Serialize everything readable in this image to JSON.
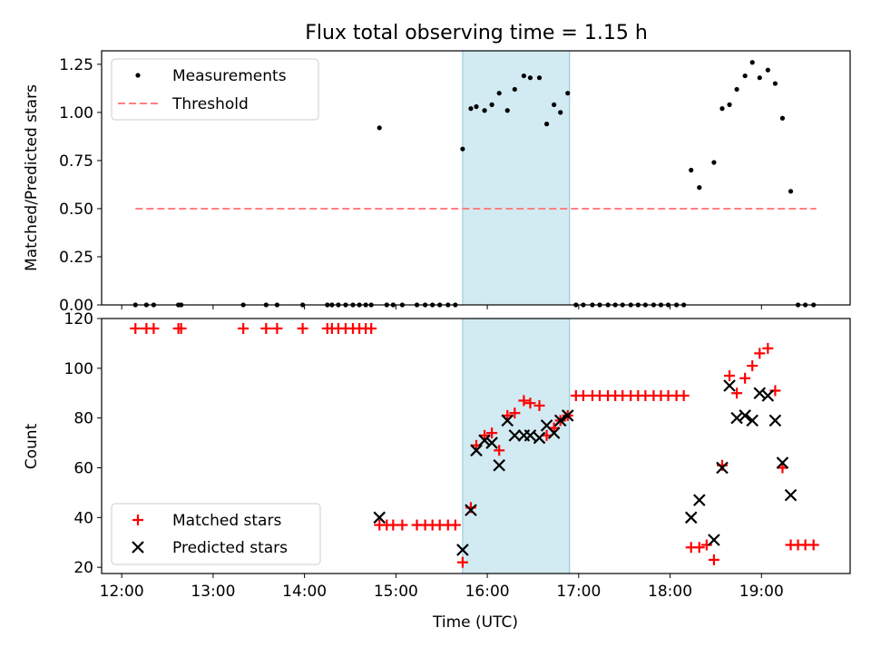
{
  "title": "Flux total observing time = 1.15 h",
  "colors": {
    "highlight": "#add8e6",
    "matched": "#ff0000",
    "predicted": "#000000",
    "threshold": "#ff8080"
  },
  "chart_data": [
    {
      "type": "scatter",
      "ylabel": "Matched/Predicted stars",
      "xlim": [
        11.78,
        19.97
      ],
      "ylim": [
        0,
        1.32
      ],
      "yticks": [
        "0.00",
        "0.25",
        "0.50",
        "0.75",
        "1.00",
        "1.25"
      ],
      "yticks_values": [
        0,
        0.25,
        0.5,
        0.75,
        1.0,
        1.25
      ],
      "highlight_span": [
        15.73,
        16.9
      ],
      "legend_position": "upper-left",
      "series": [
        {
          "name": "Measurements",
          "x": [
            12.15,
            12.27,
            12.35,
            12.62,
            12.65,
            13.33,
            13.58,
            13.7,
            13.98,
            14.25,
            14.3,
            14.37,
            14.45,
            14.53,
            14.6,
            14.67,
            14.73,
            14.82,
            14.9,
            14.97,
            15.07,
            15.23,
            15.32,
            15.4,
            15.48,
            15.57,
            15.65,
            15.73,
            15.82,
            15.88,
            15.97,
            16.05,
            16.13,
            16.22,
            16.3,
            16.4,
            16.47,
            16.57,
            16.65,
            16.73,
            16.8,
            16.88,
            16.97,
            17.05,
            17.15,
            17.23,
            17.32,
            17.4,
            17.48,
            17.57,
            17.65,
            17.73,
            17.82,
            17.9,
            17.98,
            18.07,
            18.15,
            18.23,
            18.32,
            18.48,
            18.57,
            18.65,
            18.73,
            18.82,
            18.9,
            18.98,
            19.07,
            19.15,
            19.23,
            19.32,
            19.4,
            19.48,
            19.57
          ],
          "y": [
            0,
            0,
            0,
            0,
            0,
            0,
            0,
            0,
            0,
            0,
            0,
            0,
            0,
            0,
            0,
            0,
            0,
            0.92,
            0,
            0,
            0,
            0,
            0,
            0,
            0,
            0,
            0,
            0.81,
            1.02,
            1.03,
            1.01,
            1.04,
            1.1,
            1.01,
            1.12,
            1.19,
            1.18,
            1.18,
            0.94,
            1.04,
            1.0,
            1.1,
            0,
            0,
            0,
            0,
            0,
            0,
            0,
            0,
            0,
            0,
            0,
            0,
            0,
            0,
            0,
            0.7,
            0.61,
            0.74,
            1.02,
            1.04,
            1.12,
            1.19,
            1.26,
            1.18,
            1.22,
            1.15,
            0.97,
            0.59,
            0,
            0,
            0
          ]
        },
        {
          "name": "Threshold",
          "x": [
            12.15,
            19.6
          ],
          "y": [
            0.5,
            0.5
          ]
        }
      ]
    },
    {
      "type": "scatter",
      "xlabel": "Time (UTC)",
      "ylabel": "Count",
      "xlim": [
        11.78,
        19.97
      ],
      "ylim": [
        17.5,
        120
      ],
      "xticks": [
        "12:00",
        "13:00",
        "14:00",
        "15:00",
        "16:00",
        "17:00",
        "18:00",
        "19:00"
      ],
      "xticks_values": [
        12,
        13,
        14,
        15,
        16,
        17,
        18,
        19
      ],
      "yticks": [
        "20",
        "40",
        "60",
        "80",
        "100",
        "120"
      ],
      "yticks_values": [
        20,
        40,
        60,
        80,
        100,
        120
      ],
      "highlight_span": [
        15.73,
        16.9
      ],
      "legend_position": "lower-left",
      "series": [
        {
          "name": "Matched stars",
          "x": [
            12.15,
            12.27,
            12.35,
            12.62,
            12.65,
            13.33,
            13.58,
            13.7,
            13.98,
            14.25,
            14.3,
            14.37,
            14.45,
            14.53,
            14.6,
            14.67,
            14.73,
            14.82,
            14.9,
            14.97,
            15.07,
            15.23,
            15.32,
            15.4,
            15.48,
            15.57,
            15.65,
            15.73,
            15.82,
            15.88,
            15.97,
            16.05,
            16.13,
            16.22,
            16.3,
            16.4,
            16.47,
            16.57,
            16.65,
            16.73,
            16.8,
            16.88,
            16.97,
            17.05,
            17.15,
            17.23,
            17.32,
            17.4,
            17.48,
            17.57,
            17.65,
            17.73,
            17.82,
            17.9,
            17.98,
            18.07,
            18.15,
            18.23,
            18.32,
            18.4,
            18.48,
            18.57,
            18.65,
            18.73,
            18.82,
            18.9,
            18.98,
            19.07,
            19.15,
            19.23,
            19.32,
            19.4,
            19.48,
            19.57
          ],
          "y": [
            116,
            116,
            116,
            116,
            116,
            116,
            116,
            116,
            116,
            116,
            116,
            116,
            116,
            116,
            116,
            116,
            116,
            37,
            37,
            37,
            37,
            37,
            37,
            37,
            37,
            37,
            37,
            22,
            44,
            69,
            73,
            74,
            67,
            81,
            82,
            87,
            86,
            85,
            73,
            76,
            79,
            81,
            89,
            89,
            89,
            89,
            89,
            89,
            89,
            89,
            89,
            89,
            89,
            89,
            89,
            89,
            89,
            28,
            28,
            29,
            23,
            61,
            97,
            90,
            96,
            101,
            106,
            108,
            91,
            60,
            29,
            29,
            29,
            29
          ]
        },
        {
          "name": "Predicted stars",
          "x": [
            14.82,
            15.73,
            15.82,
            15.88,
            15.97,
            16.05,
            16.13,
            16.22,
            16.3,
            16.4,
            16.47,
            16.57,
            16.65,
            16.73,
            16.8,
            16.88,
            18.23,
            18.32,
            18.48,
            18.57,
            18.65,
            18.73,
            18.82,
            18.9,
            18.98,
            19.07,
            19.15,
            19.23,
            19.32
          ],
          "y": [
            40,
            27,
            43,
            67,
            71,
            70,
            61,
            79,
            73,
            73,
            73,
            72,
            77,
            74,
            79,
            81,
            40,
            47,
            31,
            60,
            93,
            80,
            81,
            79,
            90,
            89,
            79,
            62,
            49
          ]
        }
      ]
    }
  ]
}
